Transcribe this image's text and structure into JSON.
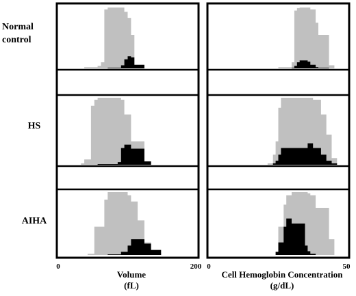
{
  "chart_data": {
    "type": "area",
    "rows": [
      {
        "label_lines": [
          "Normal",
          "control"
        ]
      },
      {
        "label_lines": [
          "HS"
        ]
      },
      {
        "label_lines": [
          "AIHA"
        ]
      }
    ],
    "panels": [
      {
        "xlabel_lines": [
          "Volume",
          "(fL)"
        ],
        "xticks": [
          "0",
          "200"
        ],
        "xlim": [
          0,
          200
        ],
        "ylim": [
          0,
          1
        ],
        "histograms": [
          {
            "x": [
              35,
              55,
              60,
              65,
              70,
              90,
              95,
              100,
              105,
              110,
              125
            ],
            "gray": [
              0.02,
              0.04,
              0.1,
              0.97,
              1.0,
              1.0,
              0.93,
              0.83,
              0.55,
              0.05,
              0.0
            ],
            "black": [
              0,
              0,
              0,
              0,
              0.01,
              0.05,
              0.15,
              0.2,
              0.18,
              0.06,
              0.0
            ]
          },
          {
            "x": [
              30,
              35,
              45,
              50,
              55,
              85,
              90,
              95,
              105,
              125,
              135
            ],
            "gray": [
              0.02,
              0.08,
              0.88,
              0.97,
              1.0,
              1.0,
              0.97,
              0.75,
              0.35,
              0.05,
              0.0
            ],
            "black": [
              0,
              0,
              0,
              0,
              0.01,
              0.04,
              0.25,
              0.3,
              0.24,
              0.05,
              0.0
            ]
          },
          {
            "x": [
              40,
              50,
              65,
              70,
              90,
              100,
              105,
              115,
              125,
              135,
              150
            ],
            "gray": [
              0.02,
              0.45,
              0.88,
              1.0,
              1.0,
              0.95,
              0.85,
              0.55,
              0.2,
              0.03,
              0.0
            ],
            "black": [
              0,
              0,
              0,
              0.01,
              0.05,
              0.15,
              0.25,
              0.25,
              0.18,
              0.08,
              0.0
            ]
          }
        ]
      },
      {
        "xlabel_lines": [
          "Cell Hemoglobin Concentration",
          "(g/dL)"
        ],
        "xticks": [
          "0",
          "50"
        ],
        "xlim": [
          0,
          50
        ],
        "ylim": [
          0,
          1
        ],
        "histograms": [
          {
            "x": [
              25,
              30,
              31,
              32,
              33,
              36,
              37,
              39,
              40,
              44,
              46
            ],
            "gray": [
              0.02,
              0.1,
              0.95,
              0.99,
              1.0,
              1.0,
              0.97,
              0.75,
              0.55,
              0.05,
              0.0
            ],
            "black": [
              0,
              0.01,
              0.04,
              0.1,
              0.13,
              0.11,
              0.06,
              0.02,
              0.01,
              0.0,
              0.0
            ]
          },
          {
            "x": [
              21,
              23,
              24,
              25,
              26,
              36,
              38,
              41,
              43,
              45,
              47
            ],
            "gray": [
              0.02,
              0.15,
              0.35,
              0.85,
              1.0,
              1.0,
              0.97,
              0.75,
              0.45,
              0.1,
              0.0
            ],
            "black": [
              0,
              0.02,
              0.06,
              0.15,
              0.25,
              0.32,
              0.25,
              0.15,
              0.06,
              0.02,
              0.0
            ]
          },
          {
            "x": [
              24,
              25,
              27,
              28,
              30,
              35,
              36,
              37,
              39,
              44,
              46
            ],
            "gray": [
              0.02,
              0.45,
              0.8,
              0.95,
              1.0,
              1.0,
              0.98,
              0.95,
              0.75,
              0.25,
              0.0
            ],
            "black": [
              0.05,
              0.2,
              0.45,
              0.58,
              0.5,
              0.15,
              0.06,
              0.02,
              0.0,
              0.0,
              0.0
            ]
          }
        ]
      }
    ]
  }
}
